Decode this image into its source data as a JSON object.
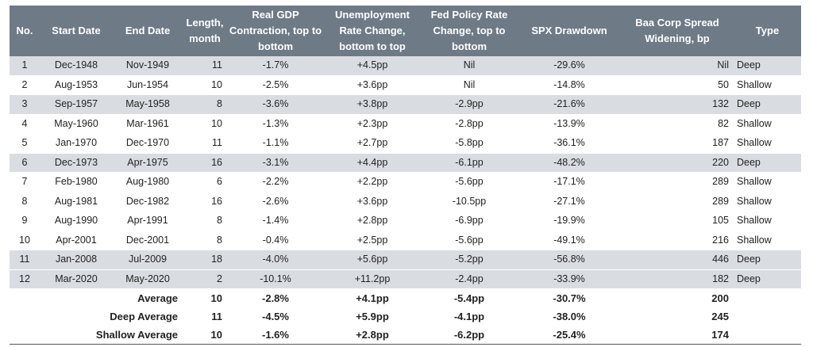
{
  "headers": {
    "no": "No.",
    "start": "Start Date",
    "end": "End Date",
    "length": "Length, month",
    "gdp": "Real GDP Contraction, top to bottom",
    "unemp": "Unemployment Rate Change, bottom to top",
    "fed": "Fed Policy Rate Change, top to bottom",
    "spx": "SPX Drawdown",
    "baa": "Baa Corp Spread Widening, bp",
    "type": "Type"
  },
  "rows": [
    {
      "no": "1",
      "start": "Dec-1948",
      "end": "Nov-1949",
      "length": "11",
      "gdp": "-1.7%",
      "unemp": "+4.5pp",
      "fed": "Nil",
      "spx": "-29.6%",
      "baa": "Nil",
      "type": "Deep",
      "shaded": true
    },
    {
      "no": "2",
      "start": "Aug-1953",
      "end": "Jun-1954",
      "length": "10",
      "gdp": "-2.5%",
      "unemp": "+3.6pp",
      "fed": "Nil",
      "spx": "-14.8%",
      "baa": "50",
      "type": "Shallow",
      "shaded": false
    },
    {
      "no": "3",
      "start": "Sep-1957",
      "end": "May-1958",
      "length": "8",
      "gdp": "-3.6%",
      "unemp": "+3.8pp",
      "fed": "-2.9pp",
      "spx": "-21.6%",
      "baa": "132",
      "type": "Deep",
      "shaded": true
    },
    {
      "no": "4",
      "start": "May-1960",
      "end": "Mar-1961",
      "length": "10",
      "gdp": "-1.3%",
      "unemp": "+2.3pp",
      "fed": "-2.8pp",
      "spx": "-13.9%",
      "baa": "82",
      "type": "Shallow",
      "shaded": false
    },
    {
      "no": "5",
      "start": "Jan-1970",
      "end": "Dec-1970",
      "length": "11",
      "gdp": "-1.1%",
      "unemp": "+2.7pp",
      "fed": "-5.8pp",
      "spx": "-36.1%",
      "baa": "187",
      "type": "Shallow",
      "shaded": false
    },
    {
      "no": "6",
      "start": "Dec-1973",
      "end": "Apr-1975",
      "length": "16",
      "gdp": "-3.1%",
      "unemp": "+4.4pp",
      "fed": "-6.1pp",
      "spx": "-48.2%",
      "baa": "220",
      "type": "Deep",
      "shaded": true
    },
    {
      "no": "7",
      "start": "Feb-1980",
      "end": "Aug-1980",
      "length": "6",
      "gdp": "-2.2%",
      "unemp": "+2.2pp",
      "fed": "-5.6pp",
      "spx": "-17.1%",
      "baa": "289",
      "type": "Shallow",
      "shaded": false
    },
    {
      "no": "8",
      "start": "Aug-1981",
      "end": "Dec-1982",
      "length": "16",
      "gdp": "-2.6%",
      "unemp": "+3.6pp",
      "fed": "-10.5pp",
      "spx": "-27.1%",
      "baa": "289",
      "type": "Shallow",
      "shaded": false
    },
    {
      "no": "9",
      "start": "Aug-1990",
      "end": "Apr-1991",
      "length": "8",
      "gdp": "-1.4%",
      "unemp": "+2.8pp",
      "fed": "-6.9pp",
      "spx": "-19.9%",
      "baa": "105",
      "type": "Shallow",
      "shaded": false
    },
    {
      "no": "10",
      "start": "Apr-2001",
      "end": "Dec-2001",
      "length": "8",
      "gdp": "-0.4%",
      "unemp": "+2.5pp",
      "fed": "-5.6pp",
      "spx": "-49.1%",
      "baa": "216",
      "type": "Shallow",
      "shaded": false
    },
    {
      "no": "11",
      "start": "Jan-2008",
      "end": "Jul-2009",
      "length": "18",
      "gdp": "-4.0%",
      "unemp": "+5.6pp",
      "fed": "-5.2pp",
      "spx": "-56.8%",
      "baa": "446",
      "type": "Deep",
      "shaded": true
    },
    {
      "no": "12",
      "start": "Mar-2020",
      "end": "May-2020",
      "length": "2",
      "gdp": "-10.1%",
      "unemp": "+11.2pp",
      "fed": "-2.4pp",
      "spx": "-33.9%",
      "baa": "182",
      "type": "Deep",
      "shaded": true
    }
  ],
  "summary": [
    {
      "label": "Average",
      "length": "10",
      "gdp": "-2.8%",
      "unemp": "+4.1pp",
      "fed": "-5.4pp",
      "spx": "-30.7%",
      "baa": "200"
    },
    {
      "label": "Deep Average",
      "length": "11",
      "gdp": "-4.5%",
      "unemp": "+5.9pp",
      "fed": "-4.1pp",
      "spx": "-38.0%",
      "baa": "245"
    },
    {
      "label": "Shallow Average",
      "length": "10",
      "gdp": "-1.6%",
      "unemp": "+2.8pp",
      "fed": "-6.2pp",
      "spx": "-25.4%",
      "baa": "174"
    }
  ],
  "colors": {
    "header_bg": "#6e7a86",
    "shade": "#d9dce1"
  }
}
